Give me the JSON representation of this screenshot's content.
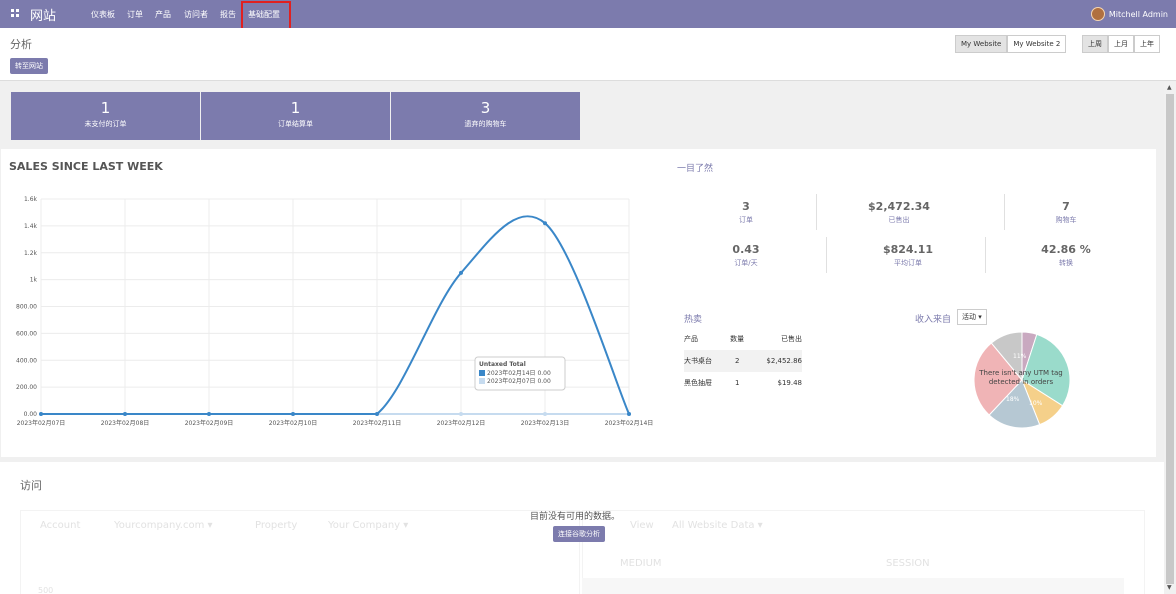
{
  "navbar": {
    "brand": "网站",
    "menu": [
      "仪表板",
      "订单",
      "产品",
      "访问者",
      "报告",
      "基础配置"
    ],
    "user": "Mitchell Admin"
  },
  "control": {
    "title": "分析",
    "goto_label": "转至网站",
    "websites": [
      "My Website",
      "My Website 2"
    ],
    "periods": [
      "上周",
      "上月",
      "上年"
    ]
  },
  "kpis": [
    {
      "value": "1",
      "label": "未支付的订单"
    },
    {
      "value": "1",
      "label": "订单结算单"
    },
    {
      "value": "3",
      "label": "遗弃的购物车"
    }
  ],
  "sales": {
    "title": "SALES SINCE LAST WEEK",
    "tooltip": {
      "title": "Untaxed Total",
      "rows": [
        "2023年02月14日  0.00",
        "2023年02月07日  0.00"
      ]
    }
  },
  "chart_data": {
    "type": "line",
    "title": "SALES SINCE LAST WEEK",
    "x": [
      "2023年02月07日",
      "2023年02月08日",
      "2023年02月09日",
      "2023年02月10日",
      "2023年02月11日",
      "2023年02月12日",
      "2023年02月13日",
      "2023年02月14日"
    ],
    "y_ticks": [
      "0.00",
      "200.00",
      "400.00",
      "600.00",
      "800.00",
      "1k",
      "1.2k",
      "1.4k",
      "1.6k"
    ],
    "ylim": [
      0,
      1600
    ],
    "grid": true,
    "series": [
      {
        "values": [
          0,
          0,
          0,
          0,
          0,
          1050,
          1420,
          0
        ],
        "color": "#3a87c8"
      },
      {
        "values": [
          0,
          0,
          0,
          0,
          0,
          0,
          0,
          0
        ],
        "color": "#c6dbef"
      }
    ]
  },
  "glance": {
    "title": "一目了然",
    "stats": [
      {
        "value": "3",
        "label": "订单"
      },
      {
        "value": "$2,472.34",
        "label": "已售出"
      },
      {
        "value": "7",
        "label": "购物车"
      },
      {
        "value": "0.43",
        "label": "订单/天"
      },
      {
        "value": "$824.11",
        "label": "平均订单"
      },
      {
        "value": "42.86 %",
        "label": "转换"
      }
    ]
  },
  "hot": {
    "title": "热卖",
    "headers": [
      "产品",
      "数量",
      "已售出"
    ],
    "rows": [
      [
        "大书桌台",
        "2",
        "$2,452.86"
      ],
      [
        "黑色抽屉",
        "1",
        "$19.48"
      ]
    ]
  },
  "sources": {
    "label": "收入来自",
    "select": "活动",
    "note": "There isn't any UTM tag detected in orders",
    "slice_labels": [
      "11%",
      "18%",
      "10%"
    ],
    "slices": [
      {
        "pct": 5,
        "color": "#c9a9c0"
      },
      {
        "pct": 29,
        "color": "#9adbcb"
      },
      {
        "pct": 10,
        "color": "#f5d08a"
      },
      {
        "pct": 18,
        "color": "#b6c8d3"
      },
      {
        "pct": 27,
        "color": "#f0b4b6"
      },
      {
        "pct": 11,
        "color": "#c8c8c8"
      }
    ]
  },
  "visits": {
    "title": "访问",
    "nodata": "目前没有可用的数据。",
    "connect_label": "连接谷歌分析",
    "ghost": {
      "account": "Account",
      "account_val": "Yourcompany.com",
      "property": "Property",
      "property_val": "Your Company",
      "view": "View",
      "view_val": "All Website Data",
      "medium": "MEDIUM",
      "session": "SESSION",
      "y500": "500"
    }
  }
}
